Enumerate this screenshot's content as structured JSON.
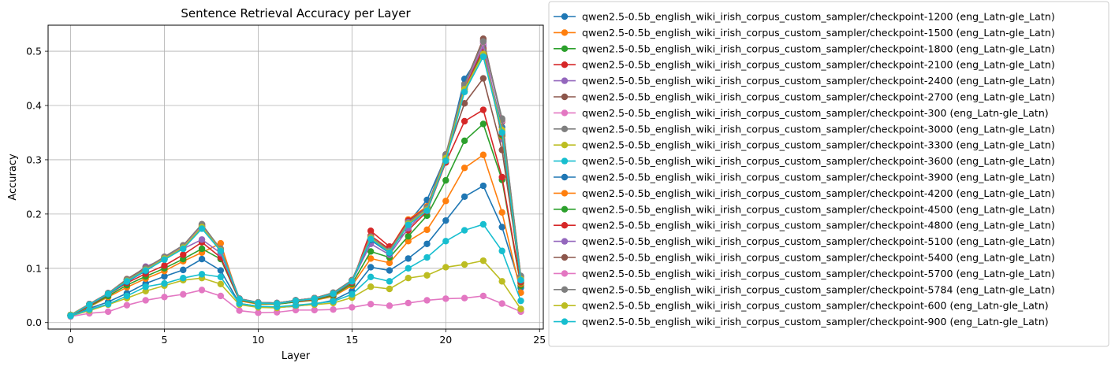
{
  "chart_data": {
    "type": "line",
    "title": "Sentence Retrieval Accuracy per Layer",
    "xlabel": "Layer",
    "ylabel": "Accuracy",
    "xlim": [
      -1.2,
      25.2
    ],
    "ylim": [
      -0.012,
      0.548
    ],
    "xticks": [
      0,
      5,
      10,
      15,
      20,
      25
    ],
    "yticks": [
      0.0,
      0.1,
      0.2,
      0.3,
      0.4,
      0.5
    ],
    "ytick_labels": [
      "0.0",
      "0.1",
      "0.2",
      "0.3",
      "0.4",
      "0.5"
    ],
    "grid": true,
    "legend_position": "outside-right",
    "x": [
      0,
      1,
      2,
      3,
      4,
      5,
      6,
      7,
      8,
      9,
      10,
      11,
      12,
      13,
      14,
      15,
      16,
      17,
      18,
      19,
      20,
      21,
      22,
      23,
      24
    ],
    "series": [
      {
        "name": "qwen2.5-0.5b_english_wiki_irish_corpus_custom_sampler/checkpoint-1200 (eng_Latn-gle_Latn)",
        "color": "#1f77b4",
        "values": [
          0.012,
          0.026,
          0.038,
          0.054,
          0.072,
          0.085,
          0.097,
          0.117,
          0.096,
          0.035,
          0.03,
          0.028,
          0.03,
          0.034,
          0.041,
          0.058,
          0.102,
          0.096,
          0.118,
          0.145,
          0.188,
          0.232,
          0.252,
          0.176,
          0.064
        ]
      },
      {
        "name": "qwen2.5-0.5b_english_wiki_irish_corpus_custom_sampler/checkpoint-1500 (eng_Latn-gle_Latn)",
        "color": "#ff7f0e",
        "values": [
          0.013,
          0.029,
          0.047,
          0.065,
          0.081,
          0.095,
          0.113,
          0.129,
          0.146,
          0.04,
          0.034,
          0.034,
          0.038,
          0.041,
          0.048,
          0.068,
          0.118,
          0.11,
          0.15,
          0.171,
          0.224,
          0.285,
          0.309,
          0.203,
          0.055
        ]
      },
      {
        "name": "qwen2.5-0.5b_english_wiki_irish_corpus_custom_sampler/checkpoint-1800 (eng_Latn-gle_Latn)",
        "color": "#2ca02c",
        "values": [
          0.013,
          0.03,
          0.049,
          0.069,
          0.085,
          0.1,
          0.117,
          0.136,
          0.117,
          0.041,
          0.035,
          0.034,
          0.038,
          0.042,
          0.05,
          0.071,
          0.131,
          0.12,
          0.159,
          0.197,
          0.262,
          0.335,
          0.366,
          0.263,
          0.068
        ]
      },
      {
        "name": "qwen2.5-0.5b_english_wiki_irish_corpus_custom_sampler/checkpoint-2100 (eng_Latn-gle_Latn)",
        "color": "#d62728",
        "values": [
          0.013,
          0.031,
          0.052,
          0.073,
          0.09,
          0.105,
          0.125,
          0.148,
          0.12,
          0.042,
          0.036,
          0.035,
          0.039,
          0.043,
          0.052,
          0.074,
          0.169,
          0.14,
          0.17,
          0.205,
          0.295,
          0.371,
          0.392,
          0.268,
          0.071
        ]
      },
      {
        "name": "qwen2.5-0.5b_english_wiki_irish_corpus_custom_sampler/checkpoint-2400 (eng_Latn-gle_Latn)",
        "color": "#9467bd",
        "values": [
          0.013,
          0.033,
          0.054,
          0.076,
          0.103,
          0.117,
          0.136,
          0.153,
          0.128,
          0.043,
          0.036,
          0.035,
          0.04,
          0.044,
          0.053,
          0.076,
          0.145,
          0.125,
          0.174,
          0.209,
          0.3,
          0.434,
          0.514,
          0.338,
          0.077
        ]
      },
      {
        "name": "qwen2.5-0.5b_english_wiki_irish_corpus_custom_sampler/checkpoint-2700 (eng_Latn-gle_Latn)",
        "color": "#8c564b",
        "values": [
          0.014,
          0.034,
          0.054,
          0.08,
          0.101,
          0.12,
          0.142,
          0.181,
          0.134,
          0.044,
          0.037,
          0.036,
          0.041,
          0.045,
          0.054,
          0.077,
          0.155,
          0.128,
          0.185,
          0.214,
          0.305,
          0.404,
          0.45,
          0.318,
          0.082
        ]
      },
      {
        "name": "qwen2.5-0.5b_english_wiki_irish_corpus_custom_sampler/checkpoint-300 (eng_Latn-gle_Latn)",
        "color": "#e377c2",
        "values": [
          0.011,
          0.017,
          0.02,
          0.032,
          0.041,
          0.047,
          0.052,
          0.06,
          0.049,
          0.022,
          0.018,
          0.019,
          0.023,
          0.023,
          0.024,
          0.028,
          0.034,
          0.031,
          0.036,
          0.041,
          0.044,
          0.045,
          0.049,
          0.035,
          0.02
        ]
      },
      {
        "name": "qwen2.5-0.5b_english_wiki_irish_corpus_custom_sampler/checkpoint-3000 (eng_Latn-gle_Latn)",
        "color": "#7f7f7f",
        "values": [
          0.014,
          0.034,
          0.054,
          0.078,
          0.098,
          0.121,
          0.142,
          0.178,
          0.136,
          0.044,
          0.037,
          0.036,
          0.041,
          0.045,
          0.055,
          0.078,
          0.159,
          0.133,
          0.182,
          0.21,
          0.31,
          0.44,
          0.52,
          0.376,
          0.086
        ]
      },
      {
        "name": "qwen2.5-0.5b_english_wiki_irish_corpus_custom_sampler/checkpoint-3300 (eng_Latn-gle_Latn)",
        "color": "#bcbd22",
        "values": [
          0.012,
          0.022,
          0.033,
          0.045,
          0.058,
          0.068,
          0.078,
          0.082,
          0.071,
          0.033,
          0.028,
          0.027,
          0.031,
          0.033,
          0.036,
          0.046,
          0.066,
          0.062,
          0.082,
          0.087,
          0.102,
          0.107,
          0.114,
          0.076,
          0.025
        ]
      },
      {
        "name": "qwen2.5-0.5b_english_wiki_irish_corpus_custom_sampler/checkpoint-3600 (eng_Latn-gle_Latn)",
        "color": "#17becf",
        "values": [
          0.012,
          0.024,
          0.034,
          0.049,
          0.066,
          0.072,
          0.082,
          0.089,
          0.084,
          0.035,
          0.03,
          0.029,
          0.032,
          0.035,
          0.039,
          0.052,
          0.084,
          0.076,
          0.1,
          0.12,
          0.15,
          0.17,
          0.181,
          0.132,
          0.04
        ]
      },
      {
        "name": "qwen2.5-0.5b_english_wiki_irish_corpus_custom_sampler/checkpoint-3900 (eng_Latn-gle_Latn)",
        "color": "#1f77b4",
        "values": [
          0.014,
          0.034,
          0.052,
          0.075,
          0.095,
          0.117,
          0.139,
          0.174,
          0.132,
          0.043,
          0.036,
          0.035,
          0.04,
          0.044,
          0.053,
          0.076,
          0.152,
          0.128,
          0.184,
          0.226,
          0.305,
          0.449,
          0.502,
          0.36,
          0.078
        ]
      },
      {
        "name": "qwen2.5-0.5b_english_wiki_irish_corpus_custom_sampler/checkpoint-4200 (eng_Latn-gle_Latn)",
        "color": "#ff7f0e",
        "values": [
          0.014,
          0.034,
          0.054,
          0.078,
          0.098,
          0.118,
          0.139,
          0.176,
          0.134,
          0.043,
          0.036,
          0.035,
          0.04,
          0.045,
          0.054,
          0.077,
          0.16,
          0.135,
          0.19,
          0.214,
          0.3,
          0.426,
          0.5,
          0.343,
          0.072
        ]
      },
      {
        "name": "qwen2.5-0.5b_english_wiki_irish_corpus_custom_sampler/checkpoint-4500 (eng_Latn-gle_Latn)",
        "color": "#2ca02c",
        "values": [
          0.014,
          0.034,
          0.054,
          0.078,
          0.098,
          0.119,
          0.14,
          0.177,
          0.134,
          0.043,
          0.036,
          0.035,
          0.04,
          0.045,
          0.054,
          0.077,
          0.158,
          0.133,
          0.186,
          0.21,
          0.302,
          0.43,
          0.503,
          0.345,
          0.074
        ]
      },
      {
        "name": "qwen2.5-0.5b_english_wiki_irish_corpus_custom_sampler/checkpoint-4800 (eng_Latn-gle_Latn)",
        "color": "#d62728",
        "values": [
          0.014,
          0.034,
          0.054,
          0.078,
          0.099,
          0.119,
          0.141,
          0.178,
          0.134,
          0.043,
          0.036,
          0.035,
          0.04,
          0.045,
          0.054,
          0.077,
          0.16,
          0.135,
          0.188,
          0.212,
          0.304,
          0.432,
          0.506,
          0.348,
          0.075
        ]
      },
      {
        "name": "qwen2.5-0.5b_english_wiki_irish_corpus_custom_sampler/checkpoint-5100 (eng_Latn-gle_Latn)",
        "color": "#9467bd",
        "values": [
          0.014,
          0.034,
          0.054,
          0.078,
          0.099,
          0.12,
          0.141,
          0.179,
          0.135,
          0.044,
          0.037,
          0.036,
          0.041,
          0.045,
          0.054,
          0.077,
          0.158,
          0.132,
          0.185,
          0.211,
          0.306,
          0.436,
          0.51,
          0.352,
          0.08
        ]
      },
      {
        "name": "qwen2.5-0.5b_english_wiki_irish_corpus_custom_sampler/checkpoint-5400 (eng_Latn-gle_Latn)",
        "color": "#8c564b",
        "values": [
          0.014,
          0.034,
          0.054,
          0.079,
          0.1,
          0.121,
          0.142,
          0.181,
          0.135,
          0.044,
          0.037,
          0.036,
          0.041,
          0.045,
          0.054,
          0.078,
          0.157,
          0.131,
          0.184,
          0.212,
          0.308,
          0.438,
          0.523,
          0.37,
          0.084
        ]
      },
      {
        "name": "qwen2.5-0.5b_english_wiki_irish_corpus_custom_sampler/checkpoint-5700 (eng_Latn-gle_Latn)",
        "color": "#e377c2",
        "values": [
          0.014,
          0.034,
          0.054,
          0.078,
          0.1,
          0.121,
          0.141,
          0.18,
          0.135,
          0.044,
          0.037,
          0.036,
          0.041,
          0.045,
          0.054,
          0.078,
          0.158,
          0.132,
          0.184,
          0.211,
          0.307,
          0.437,
          0.516,
          0.372,
          0.083
        ]
      },
      {
        "name": "qwen2.5-0.5b_english_wiki_irish_corpus_custom_sampler/checkpoint-5784 (eng_Latn-gle_Latn)",
        "color": "#7f7f7f",
        "values": [
          0.014,
          0.034,
          0.054,
          0.079,
          0.1,
          0.121,
          0.142,
          0.181,
          0.135,
          0.044,
          0.037,
          0.036,
          0.041,
          0.045,
          0.055,
          0.078,
          0.158,
          0.132,
          0.184,
          0.212,
          0.308,
          0.438,
          0.518,
          0.374,
          0.085
        ]
      },
      {
        "name": "qwen2.5-0.5b_english_wiki_irish_corpus_custom_sampler/checkpoint-600 (eng_Latn-gle_Latn)",
        "color": "#bcbd22",
        "values": [
          0.014,
          0.033,
          0.053,
          0.077,
          0.097,
          0.118,
          0.138,
          0.176,
          0.133,
          0.043,
          0.036,
          0.035,
          0.04,
          0.044,
          0.053,
          0.076,
          0.156,
          0.13,
          0.182,
          0.208,
          0.303,
          0.43,
          0.495,
          0.355,
          0.08
        ]
      },
      {
        "name": "qwen2.5-0.5b_english_wiki_irish_corpus_custom_sampler/checkpoint-900 (eng_Latn-gle_Latn)",
        "color": "#17becf",
        "values": [
          0.013,
          0.033,
          0.053,
          0.076,
          0.096,
          0.116,
          0.136,
          0.173,
          0.132,
          0.043,
          0.036,
          0.035,
          0.04,
          0.044,
          0.053,
          0.076,
          0.154,
          0.129,
          0.18,
          0.206,
          0.298,
          0.425,
          0.49,
          0.35,
          0.078
        ]
      }
    ]
  }
}
